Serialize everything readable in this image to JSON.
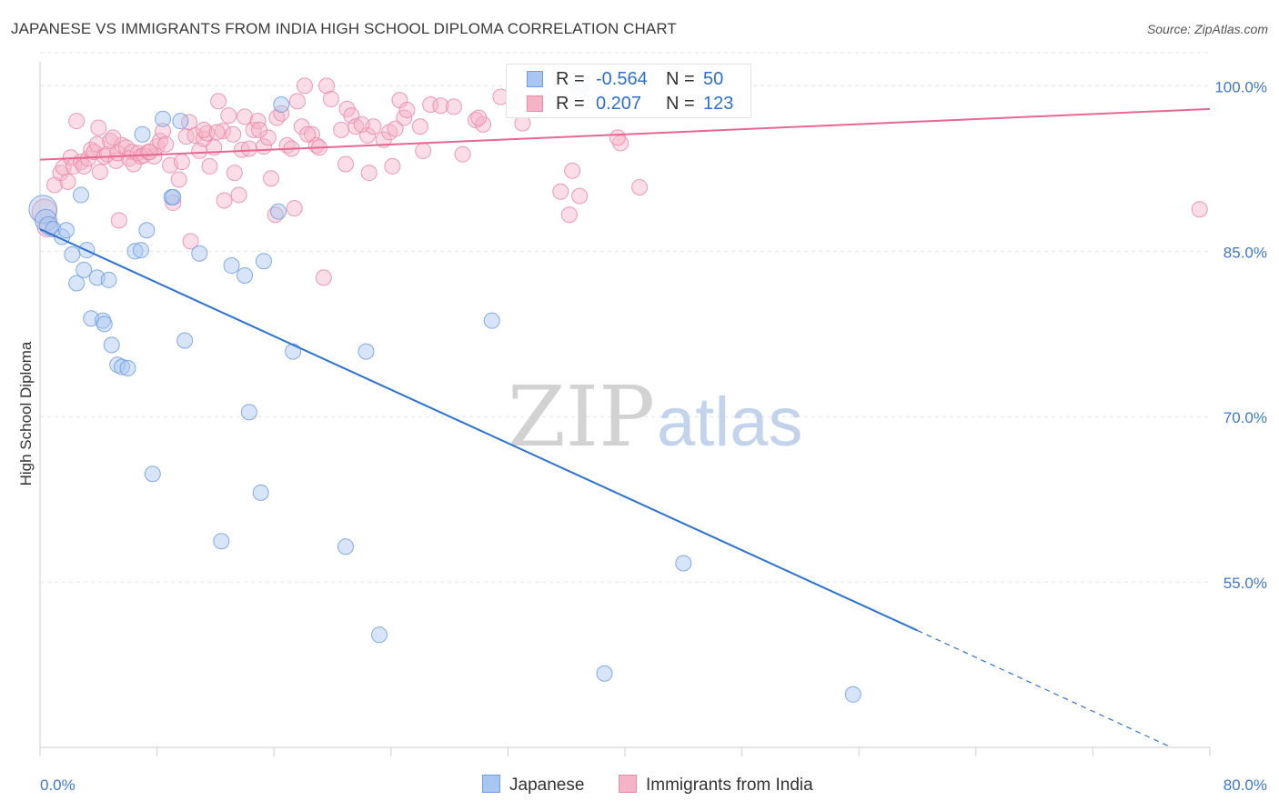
{
  "header": {
    "title": "JAPANESE VS IMMIGRANTS FROM INDIA HIGH SCHOOL DIPLOMA CORRELATION CHART",
    "source": "Source: ZipAtlas.com"
  },
  "watermark": {
    "zip": "ZIP",
    "atlas": "atlas"
  },
  "legend": {
    "rows": [
      {
        "r_label": "R =",
        "r_value": "-0.564",
        "n_label": "N =",
        "n_value": "50",
        "color": "#a9c6f0",
        "stroke": "#6f9ee0"
      },
      {
        "r_label": "R =",
        "r_value": "0.207",
        "n_label": "N =",
        "n_value": "123",
        "color": "#f5b3c8",
        "stroke": "#ea8aaa"
      }
    ]
  },
  "bottom_legend": [
    {
      "label": "Japanese",
      "color": "#a9c6f0",
      "stroke": "#6f9ee0"
    },
    {
      "label": "Immigrants from India",
      "color": "#f5b3c8",
      "stroke": "#ea8aaa"
    }
  ],
  "chart_data": {
    "type": "scatter",
    "title": "JAPANESE VS IMMIGRANTS FROM INDIA HIGH SCHOOL DIPLOMA CORRELATION CHART",
    "xlabel": "",
    "ylabel": "High School Diploma",
    "xlim": [
      0,
      80
    ],
    "ylim": [
      40,
      103
    ],
    "x_tick_labels": [
      "0.0%",
      "80.0%"
    ],
    "y_ticks": [
      55,
      70,
      85,
      100
    ],
    "y_tick_labels": [
      "55.0%",
      "70.0%",
      "85.0%",
      "100.0%"
    ],
    "grid": true,
    "series": [
      {
        "name": "Japanese",
        "color": "#6f9ee0",
        "fill": "#a9c6f0",
        "trend": {
          "x": [
            0,
            60
          ],
          "y": [
            87.0,
            50.6
          ],
          "dash_to": [
            77.2,
            40.1
          ],
          "color": "#2f73d0"
        },
        "points": [
          [
            0.2,
            88.8,
            1.8
          ],
          [
            0.4,
            87.8,
            1.4
          ],
          [
            0.6,
            87.3,
            1.2
          ],
          [
            0.9,
            87.0,
            1.0
          ],
          [
            1.5,
            86.3,
            1.0
          ],
          [
            1.8,
            86.9,
            1.0
          ],
          [
            2.2,
            84.7,
            1.0
          ],
          [
            2.5,
            82.1,
            1.0
          ],
          [
            2.8,
            90.1,
            1.0
          ],
          [
            3.0,
            83.3,
            1.0
          ],
          [
            3.2,
            85.1,
            1.0
          ],
          [
            3.5,
            78.9,
            1.0
          ],
          [
            3.9,
            82.6,
            1.0
          ],
          [
            4.3,
            78.7,
            1.0
          ],
          [
            4.4,
            78.4,
            1.0
          ],
          [
            4.7,
            82.4,
            1.0
          ],
          [
            4.9,
            76.5,
            1.0
          ],
          [
            5.3,
            74.7,
            1.0
          ],
          [
            5.6,
            74.5,
            1.0
          ],
          [
            6.0,
            74.4,
            1.0
          ],
          [
            6.5,
            85.0,
            1.0
          ],
          [
            6.9,
            85.1,
            1.0
          ],
          [
            7.0,
            95.6,
            1.0
          ],
          [
            7.3,
            86.9,
            1.0
          ],
          [
            7.7,
            64.8,
            1.0
          ],
          [
            8.4,
            97.0,
            1.0
          ],
          [
            9.0,
            89.9,
            1.0
          ],
          [
            9.6,
            96.8,
            1.0
          ],
          [
            9.9,
            76.9,
            1.0
          ],
          [
            10.9,
            84.8,
            1.0
          ],
          [
            12.4,
            58.7,
            1.0
          ],
          [
            13.1,
            83.7,
            1.0
          ],
          [
            14.0,
            82.8,
            1.0
          ],
          [
            14.3,
            70.4,
            1.0
          ],
          [
            15.1,
            63.1,
            1.0
          ],
          [
            15.3,
            84.1,
            1.0
          ],
          [
            16.3,
            88.6,
            1.0
          ],
          [
            16.5,
            98.3,
            1.0
          ],
          [
            17.3,
            75.9,
            1.0
          ],
          [
            20.9,
            58.2,
            1.0
          ],
          [
            22.3,
            75.9,
            1.0
          ],
          [
            23.2,
            50.2,
            1.0
          ],
          [
            30.9,
            78.7,
            1.0
          ],
          [
            34.4,
            99.0,
            1.0
          ],
          [
            36.9,
            99.6,
            1.0
          ],
          [
            37.1,
            100.1,
            1.0
          ],
          [
            38.6,
            46.7,
            1.0
          ],
          [
            44.0,
            56.7,
            1.0
          ],
          [
            55.6,
            44.8,
            1.0
          ],
          [
            9.1,
            89.9,
            1.0
          ]
        ]
      },
      {
        "name": "Immigrants from India",
        "color": "#ea8aaa",
        "fill": "#f5b3c8",
        "trend": {
          "x": [
            0,
            80
          ],
          "y": [
            93.3,
            97.9
          ],
          "color": "#e8668f"
        },
        "points": [
          [
            0.3,
            88.6,
            1.6
          ],
          [
            0.5,
            87.2,
            1.3
          ],
          [
            1.0,
            91.0,
            1.0
          ],
          [
            1.4,
            92.1,
            1.0
          ],
          [
            1.6,
            92.6,
            1.0
          ],
          [
            1.9,
            91.3,
            1.0
          ],
          [
            2.1,
            93.5,
            1.0
          ],
          [
            2.3,
            92.7,
            1.0
          ],
          [
            2.8,
            93.1,
            1.0
          ],
          [
            3.0,
            92.7,
            1.0
          ],
          [
            3.3,
            93.4,
            1.0
          ],
          [
            3.5,
            94.2,
            1.0
          ],
          [
            3.7,
            94.0,
            1.0
          ],
          [
            3.9,
            94.7,
            1.0
          ],
          [
            4.1,
            92.2,
            1.0
          ],
          [
            4.4,
            93.6,
            1.0
          ],
          [
            4.6,
            93.8,
            1.0
          ],
          [
            4.8,
            95.0,
            1.0
          ],
          [
            5.2,
            93.2,
            1.0
          ],
          [
            5.3,
            93.9,
            1.0
          ],
          [
            5.4,
            87.8,
            1.0
          ],
          [
            5.6,
            94.6,
            1.0
          ],
          [
            5.9,
            94.4,
            1.0
          ],
          [
            6.1,
            93.4,
            1.0
          ],
          [
            6.3,
            94.0,
            1.0
          ],
          [
            6.4,
            92.9,
            1.0
          ],
          [
            6.7,
            93.9,
            1.0
          ],
          [
            6.9,
            93.6,
            1.0
          ],
          [
            7.1,
            93.7,
            1.0
          ],
          [
            7.4,
            94.0,
            1.0
          ],
          [
            7.8,
            93.6,
            1.0
          ],
          [
            8.0,
            94.5,
            1.0
          ],
          [
            8.2,
            95.0,
            1.0
          ],
          [
            8.4,
            95.9,
            1.0
          ],
          [
            8.6,
            94.7,
            1.0
          ],
          [
            8.9,
            92.8,
            1.0
          ],
          [
            9.1,
            89.4,
            1.0
          ],
          [
            9.5,
            91.5,
            1.0
          ],
          [
            9.7,
            93.1,
            1.0
          ],
          [
            10.0,
            95.4,
            1.0
          ],
          [
            10.2,
            96.7,
            1.0
          ],
          [
            10.3,
            85.9,
            1.0
          ],
          [
            10.6,
            95.5,
            1.0
          ],
          [
            10.9,
            94.1,
            1.0
          ],
          [
            11.2,
            95.2,
            1.0
          ],
          [
            11.4,
            95.7,
            1.0
          ],
          [
            11.6,
            92.7,
            1.0
          ],
          [
            11.9,
            94.4,
            1.0
          ],
          [
            12.2,
            98.6,
            1.0
          ],
          [
            12.5,
            95.9,
            1.0
          ],
          [
            12.6,
            89.6,
            1.0
          ],
          [
            12.9,
            97.3,
            1.0
          ],
          [
            13.2,
            95.6,
            1.0
          ],
          [
            13.3,
            92.1,
            1.0
          ],
          [
            13.6,
            90.1,
            1.0
          ],
          [
            13.8,
            94.2,
            1.0
          ],
          [
            14.0,
            97.2,
            1.0
          ],
          [
            14.3,
            94.3,
            1.0
          ],
          [
            14.6,
            96.0,
            1.0
          ],
          [
            14.9,
            96.8,
            1.0
          ],
          [
            15.3,
            94.5,
            1.0
          ],
          [
            15.6,
            95.3,
            1.0
          ],
          [
            15.8,
            91.6,
            1.0
          ],
          [
            16.1,
            88.3,
            1.0
          ],
          [
            16.2,
            97.1,
            1.0
          ],
          [
            16.5,
            97.5,
            1.0
          ],
          [
            16.9,
            94.6,
            1.0
          ],
          [
            17.2,
            94.3,
            1.0
          ],
          [
            17.4,
            88.9,
            1.0
          ],
          [
            17.6,
            98.6,
            1.0
          ],
          [
            17.9,
            96.3,
            1.0
          ],
          [
            18.1,
            100.0,
            1.0
          ],
          [
            18.6,
            95.6,
            1.0
          ],
          [
            18.9,
            94.6,
            1.0
          ],
          [
            19.1,
            94.4,
            1.0
          ],
          [
            19.4,
            82.6,
            1.0
          ],
          [
            19.6,
            100.0,
            1.0
          ],
          [
            19.9,
            98.8,
            1.0
          ],
          [
            20.6,
            96.0,
            1.0
          ],
          [
            20.9,
            92.9,
            1.0
          ],
          [
            21.0,
            97.9,
            1.0
          ],
          [
            21.3,
            97.3,
            1.0
          ],
          [
            21.6,
            96.3,
            1.0
          ],
          [
            22.4,
            95.5,
            1.0
          ],
          [
            22.5,
            92.1,
            1.0
          ],
          [
            22.8,
            96.3,
            1.0
          ],
          [
            23.5,
            95.1,
            1.0
          ],
          [
            23.9,
            95.8,
            1.0
          ],
          [
            24.1,
            92.7,
            1.0
          ],
          [
            24.3,
            96.1,
            1.0
          ],
          [
            24.6,
            98.7,
            1.0
          ],
          [
            24.9,
            97.1,
            1.0
          ],
          [
            25.1,
            97.8,
            1.0
          ],
          [
            26.2,
            94.1,
            1.0
          ],
          [
            26.7,
            98.3,
            1.0
          ],
          [
            27.4,
            98.2,
            1.0
          ],
          [
            28.3,
            98.1,
            1.0
          ],
          [
            28.9,
            93.8,
            1.0
          ],
          [
            29.8,
            96.9,
            1.0
          ],
          [
            30.3,
            96.5,
            1.0
          ],
          [
            31.5,
            99.0,
            1.0
          ],
          [
            32.7,
            98.6,
            1.0
          ],
          [
            35.6,
            90.4,
            1.0
          ],
          [
            36.2,
            88.3,
            1.0
          ],
          [
            36.4,
            92.3,
            1.0
          ],
          [
            36.9,
            90.0,
            1.0
          ],
          [
            38.5,
            100.0,
            1.0
          ],
          [
            39.7,
            94.8,
            1.0
          ],
          [
            41.0,
            90.8,
            1.0
          ],
          [
            39.5,
            95.3,
            1.0
          ],
          [
            79.3,
            88.8,
            1.0
          ],
          [
            2.5,
            96.8,
            1.0
          ],
          [
            4.0,
            96.2,
            1.0
          ],
          [
            7.5,
            94.0,
            1.0
          ],
          [
            11.2,
            96.0,
            1.0
          ],
          [
            15.0,
            96.0,
            1.0
          ],
          [
            22.0,
            96.5,
            1.0
          ],
          [
            30.0,
            97.1,
            1.0
          ],
          [
            33.0,
            96.6,
            1.0
          ],
          [
            18.3,
            95.6,
            1.0
          ],
          [
            26.0,
            96.3,
            1.0
          ],
          [
            12.1,
            95.8,
            1.0
          ],
          [
            5.0,
            95.3,
            1.0
          ]
        ]
      }
    ]
  }
}
